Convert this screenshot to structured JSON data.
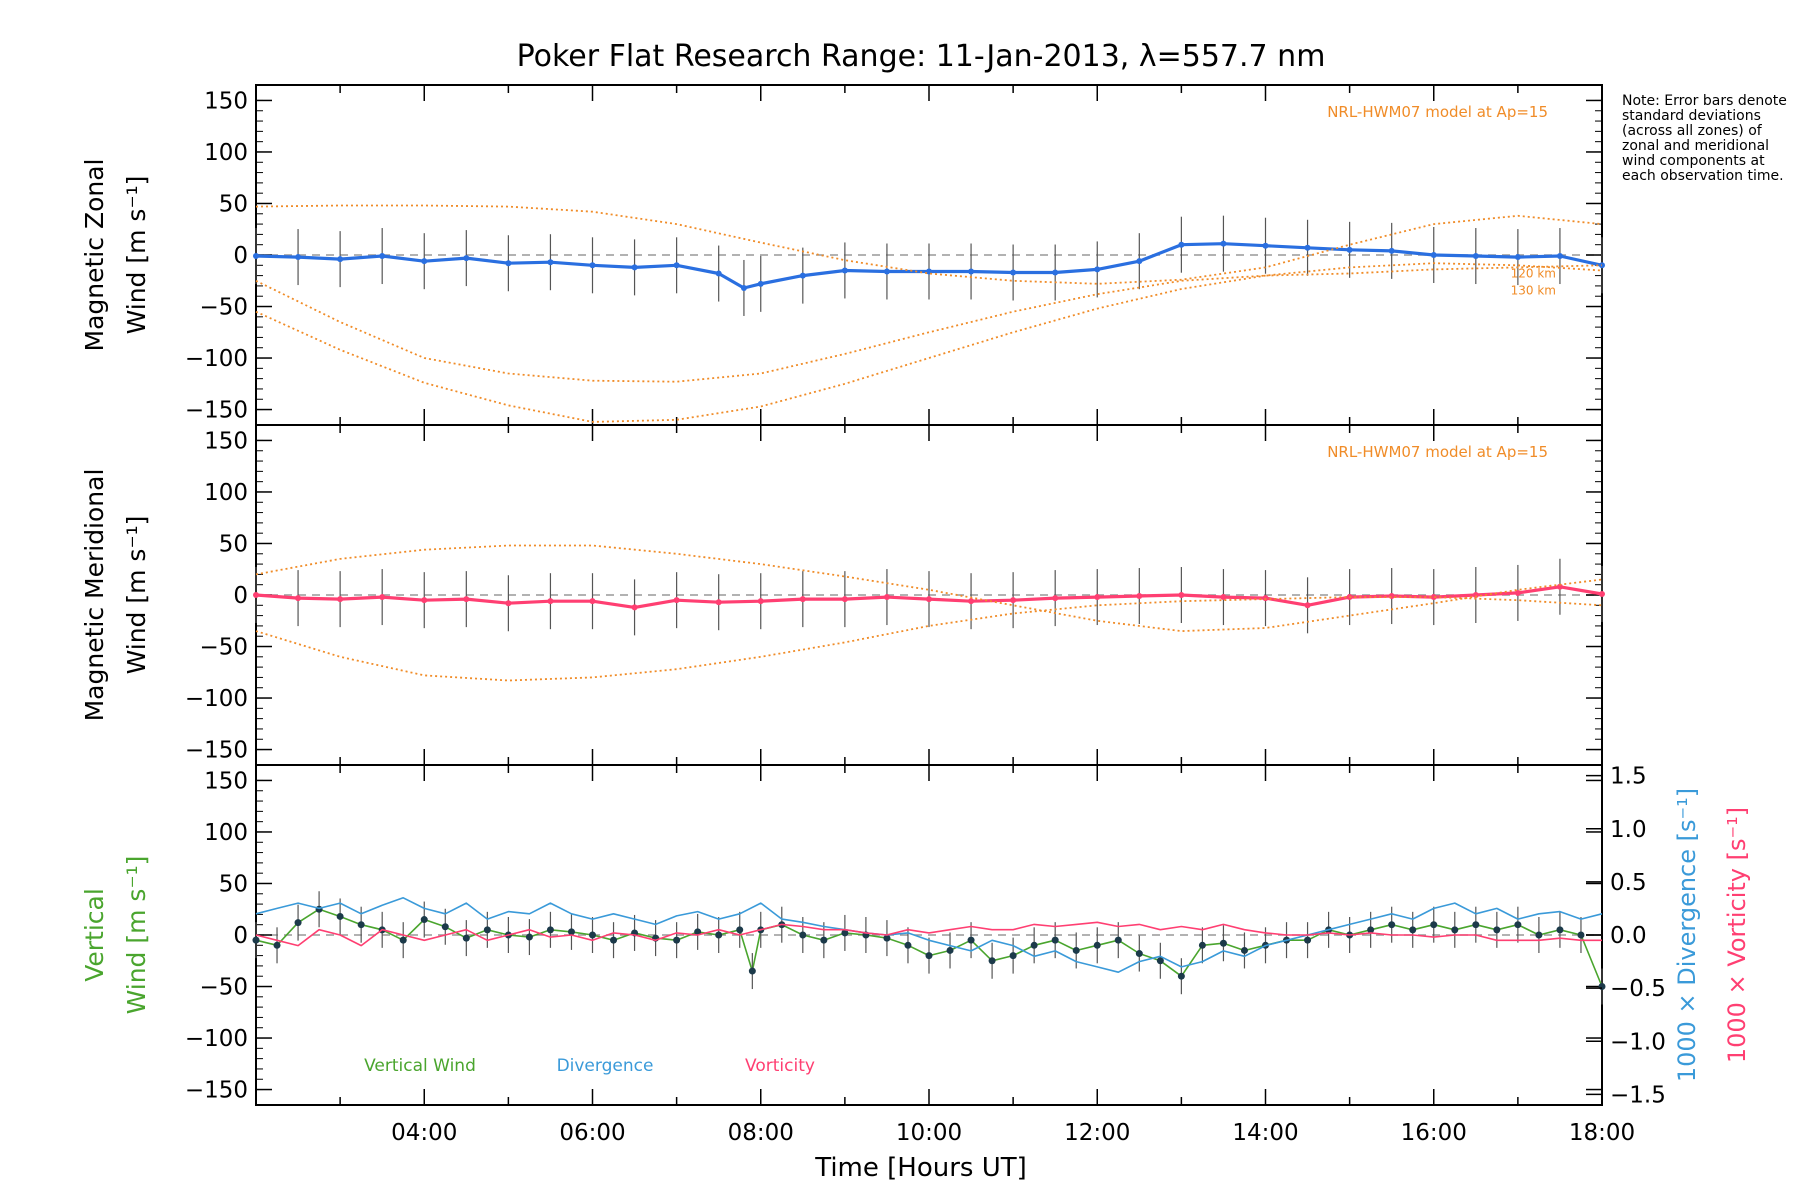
{
  "chart_data": {
    "type": "line",
    "title": "Poker Flat Research Range: 11-Jan-2013, λ=557.7 nm",
    "xlabel": "Time [Hours UT]",
    "xlim": [
      2.0,
      18.0
    ],
    "x_ticks": [
      {
        "value": 4,
        "label": "04:00"
      },
      {
        "value": 6,
        "label": "06:00"
      },
      {
        "value": 8,
        "label": "08:00"
      },
      {
        "value": 10,
        "label": "10:00"
      },
      {
        "value": 12,
        "label": "12:00"
      },
      {
        "value": 14,
        "label": "14:00"
      },
      {
        "value": 16,
        "label": "16:00"
      },
      {
        "value": 18,
        "label": "18:00"
      }
    ],
    "note": "Note: Error bars denote standard deviations (across all zones) of zonal and meridional wind components at each observation time.",
    "panels": [
      {
        "id": "zonal",
        "ylabel_line1": "Magnetic Zonal",
        "ylabel_line2": "Wind [m s⁻¹]",
        "ylim": [
          -165,
          165
        ],
        "y_ticks": [
          150,
          100,
          50,
          0,
          -50,
          -100,
          -150
        ],
        "model_label": "NRL-HWM07 model at Ap=15",
        "model_alt_labels": [
          "120 km",
          "130 km"
        ],
        "series": [
          {
            "name": "Mean zonal wind",
            "color": "#2a6fe0",
            "x": [
              2.0,
              2.5,
              3.0,
              3.5,
              4.0,
              4.5,
              5.0,
              5.5,
              6.0,
              6.5,
              7.0,
              7.5,
              7.8,
              8.0,
              8.5,
              9.0,
              9.5,
              10.0,
              10.5,
              11.0,
              11.5,
              12.0,
              12.5,
              13.0,
              13.5,
              14.0,
              14.5,
              15.0,
              15.5,
              16.0,
              16.5,
              17.0,
              17.5,
              18.0
            ],
            "y": [
              -1,
              -2,
              -4,
              -1,
              -6,
              -3,
              -8,
              -7,
              -10,
              -12,
              -10,
              -18,
              -32,
              -28,
              -20,
              -15,
              -16,
              -16,
              -16,
              -17,
              -17,
              -14,
              -6,
              10,
              11,
              9,
              7,
              5,
              4,
              0,
              -1,
              -2,
              -1,
              -10
            ]
          },
          {
            "name": "HWM07 model (120 km)",
            "color": "#f08c28",
            "x": [
              2.0,
              3.0,
              4.0,
              5.0,
              6.0,
              7.0,
              8.0,
              9.0,
              10.0,
              11.0,
              12.0,
              13.0,
              14.0,
              15.0,
              16.0,
              17.0,
              18.0
            ],
            "y": [
              -55,
              -92,
              -124,
              -146,
              -162,
              -160,
              -147,
              -125,
              -100,
              -75,
              -52,
              -33,
              -20,
              -12,
              -8,
              -10,
              -15
            ]
          },
          {
            "name": "HWM07 model (130 km)",
            "color": "#f08c28",
            "x": [
              2.0,
              3.0,
              4.0,
              5.0,
              6.0,
              7.0,
              8.0,
              9.0,
              10.0,
              11.0,
              12.0,
              13.0,
              14.0,
              15.0,
              16.0,
              17.0,
              18.0
            ],
            "y": [
              -25,
              -65,
              -100,
              -115,
              -122,
              -123,
              -115,
              -96,
              -75,
              -55,
              -38,
              -25,
              -20,
              -18,
              -14,
              -12,
              -10
            ]
          },
          {
            "name": "HWM07 model (upper)",
            "color": "#f08c28",
            "x": [
              2.0,
              3.0,
              4.0,
              5.0,
              6.0,
              7.0,
              8.0,
              9.0,
              10.0,
              11.0,
              12.0,
              13.0,
              14.0,
              15.0,
              16.0,
              17.0,
              18.0
            ],
            "y": [
              47,
              48,
              48,
              47,
              42,
              30,
              12,
              -5,
              -18,
              -25,
              -28,
              -24,
              -12,
              10,
              30,
              38,
              30
            ]
          }
        ]
      },
      {
        "id": "meridional",
        "ylabel_line1": "Magnetic Meridional",
        "ylabel_line2": "Wind [m s⁻¹]",
        "ylim": [
          -165,
          165
        ],
        "y_ticks": [
          150,
          100,
          50,
          0,
          -50,
          -100,
          -150
        ],
        "model_label": "NRL-HWM07 model at Ap=15",
        "series": [
          {
            "name": "Mean meridional wind",
            "color": "#ff3f72",
            "x": [
              2.0,
              2.5,
              3.0,
              3.5,
              4.0,
              4.5,
              5.0,
              5.5,
              6.0,
              6.5,
              7.0,
              7.5,
              8.0,
              8.5,
              9.0,
              9.5,
              10.0,
              10.5,
              11.0,
              11.5,
              12.0,
              12.5,
              13.0,
              13.5,
              14.0,
              14.5,
              15.0,
              15.5,
              16.0,
              16.5,
              17.0,
              17.5,
              18.0
            ],
            "y": [
              0,
              -3,
              -4,
              -2,
              -5,
              -4,
              -8,
              -6,
              -6,
              -12,
              -5,
              -7,
              -6,
              -4,
              -4,
              -2,
              -4,
              -6,
              -5,
              -3,
              -2,
              -1,
              0,
              -2,
              -3,
              -10,
              -2,
              -1,
              -2,
              0,
              2,
              8,
              1
            ]
          },
          {
            "name": "HWM07 model (lower)",
            "color": "#f08c28",
            "x": [
              2.0,
              3.0,
              4.0,
              5.0,
              6.0,
              7.0,
              8.0,
              9.0,
              10.0,
              11.0,
              12.0,
              13.0,
              14.0,
              15.0,
              16.0,
              17.0,
              18.0
            ],
            "y": [
              -35,
              -60,
              -78,
              -83,
              -80,
              -72,
              -60,
              -46,
              -30,
              -18,
              -10,
              -6,
              -4,
              -2,
              -2,
              -5,
              -10
            ]
          },
          {
            "name": "HWM07 model (upper)",
            "color": "#f08c28",
            "x": [
              2.0,
              3.0,
              4.0,
              5.0,
              6.0,
              7.0,
              8.0,
              9.0,
              10.0,
              11.0,
              12.0,
              13.0,
              14.0,
              15.0,
              16.0,
              17.0,
              18.0
            ],
            "y": [
              20,
              35,
              44,
              48,
              48,
              40,
              30,
              18,
              5,
              -10,
              -25,
              -35,
              -32,
              -20,
              -8,
              5,
              15
            ]
          }
        ]
      },
      {
        "id": "vertical",
        "ylabel_line1": "Vertical",
        "ylabel_line2": "Wind [m s⁻¹]",
        "ylim": [
          -165,
          165
        ],
        "y_ticks": [
          150,
          100,
          50,
          0,
          -50,
          -100,
          -150
        ],
        "y2label_line1": "1000 × Divergence [s⁻¹]",
        "y2label_line2": "1000 × Vorticity [s⁻¹]",
        "y2lim": [
          -1.6,
          1.6
        ],
        "y2_ticks": [
          1.5,
          1.0,
          0.5,
          0.0,
          -0.5,
          -1.0,
          -1.5
        ],
        "legend": [
          {
            "label": "Vertical Wind",
            "color": "#4aa52e"
          },
          {
            "label": "Divergence",
            "color": "#3a9ad9"
          },
          {
            "label": "Vorticity",
            "color": "#ff3f72"
          }
        ],
        "series": [
          {
            "name": "Vertical Wind",
            "color": "#4aa52e",
            "axis": "left",
            "x": [
              2.0,
              2.25,
              2.5,
              2.75,
              3.0,
              3.25,
              3.5,
              3.75,
              4.0,
              4.25,
              4.5,
              4.75,
              5.0,
              5.25,
              5.5,
              5.75,
              6.0,
              6.25,
              6.5,
              6.75,
              7.0,
              7.25,
              7.5,
              7.75,
              7.9,
              8.0,
              8.25,
              8.5,
              8.75,
              9.0,
              9.25,
              9.5,
              9.75,
              10.0,
              10.25,
              10.5,
              10.75,
              11.0,
              11.25,
              11.5,
              11.75,
              12.0,
              12.25,
              12.5,
              12.75,
              13.0,
              13.25,
              13.5,
              13.75,
              14.0,
              14.25,
              14.5,
              14.75,
              15.0,
              15.25,
              15.5,
              15.75,
              16.0,
              16.25,
              16.5,
              16.75,
              17.0,
              17.25,
              17.5,
              17.75,
              18.0
            ],
            "y": [
              -5,
              -10,
              12,
              25,
              18,
              10,
              5,
              -5,
              15,
              8,
              -3,
              5,
              0,
              -2,
              5,
              3,
              0,
              -5,
              2,
              -3,
              -5,
              3,
              0,
              5,
              -35,
              5,
              10,
              0,
              -5,
              2,
              0,
              -3,
              -10,
              -20,
              -15,
              -5,
              -25,
              -20,
              -10,
              -5,
              -15,
              -10,
              -5,
              -18,
              -25,
              -40,
              -10,
              -8,
              -15,
              -10,
              -5,
              -5,
              5,
              0,
              5,
              10,
              5,
              10,
              5,
              10,
              5,
              10,
              0,
              5,
              0,
              -50
            ]
          },
          {
            "name": "Divergence",
            "color": "#3a9ad9",
            "axis": "right",
            "x": [
              2.0,
              2.25,
              2.5,
              2.75,
              3.0,
              3.25,
              3.5,
              3.75,
              4.0,
              4.25,
              4.5,
              4.75,
              5.0,
              5.25,
              5.5,
              5.75,
              6.0,
              6.25,
              6.5,
              6.75,
              7.0,
              7.25,
              7.5,
              7.75,
              8.0,
              8.25,
              8.5,
              8.75,
              9.0,
              9.25,
              9.5,
              9.75,
              10.0,
              10.25,
              10.5,
              10.75,
              11.0,
              11.25,
              11.5,
              11.75,
              12.0,
              12.25,
              12.5,
              12.75,
              13.0,
              13.25,
              13.5,
              13.75,
              14.0,
              14.25,
              14.5,
              14.75,
              15.0,
              15.25,
              15.5,
              15.75,
              16.0,
              16.25,
              16.5,
              16.75,
              17.0,
              17.25,
              17.5,
              17.75,
              18.0
            ],
            "y": [
              0.2,
              0.25,
              0.3,
              0.25,
              0.3,
              0.2,
              0.28,
              0.35,
              0.25,
              0.2,
              0.3,
              0.15,
              0.22,
              0.2,
              0.3,
              0.2,
              0.15,
              0.2,
              0.15,
              0.1,
              0.18,
              0.22,
              0.15,
              0.2,
              0.3,
              0.15,
              0.12,
              0.08,
              0.05,
              0.02,
              0.0,
              0.02,
              -0.05,
              -0.1,
              -0.15,
              -0.05,
              -0.1,
              -0.2,
              -0.15,
              -0.25,
              -0.3,
              -0.35,
              -0.25,
              -0.2,
              -0.3,
              -0.25,
              -0.15,
              -0.2,
              -0.1,
              -0.05,
              0.0,
              0.05,
              0.1,
              0.15,
              0.2,
              0.15,
              0.25,
              0.3,
              0.2,
              0.25,
              0.15,
              0.2,
              0.22,
              0.15,
              0.2
            ]
          },
          {
            "name": "Vorticity",
            "color": "#ff3f72",
            "axis": "right",
            "x": [
              2.0,
              2.25,
              2.5,
              2.75,
              3.0,
              3.25,
              3.5,
              3.75,
              4.0,
              4.25,
              4.5,
              4.75,
              5.0,
              5.25,
              5.5,
              5.75,
              6.0,
              6.25,
              6.5,
              6.75,
              7.0,
              7.25,
              7.5,
              7.75,
              8.0,
              8.25,
              8.5,
              8.75,
              9.0,
              9.25,
              9.5,
              9.75,
              10.0,
              10.25,
              10.5,
              10.75,
              11.0,
              11.25,
              11.5,
              11.75,
              12.0,
              12.25,
              12.5,
              12.75,
              13.0,
              13.25,
              13.5,
              13.75,
              14.0,
              14.25,
              14.5,
              14.75,
              15.0,
              15.25,
              15.5,
              15.75,
              16.0,
              16.25,
              16.5,
              16.75,
              17.0,
              17.25,
              17.5,
              17.75,
              18.0
            ],
            "y": [
              0.0,
              -0.05,
              -0.1,
              0.05,
              0.0,
              -0.1,
              0.05,
              0.0,
              -0.05,
              0.0,
              0.05,
              -0.05,
              0.0,
              0.05,
              -0.02,
              0.0,
              -0.05,
              0.02,
              0.0,
              -0.05,
              0.02,
              0.0,
              0.05,
              0.0,
              0.05,
              0.1,
              0.08,
              0.05,
              0.05,
              0.02,
              0.0,
              0.05,
              0.02,
              0.05,
              0.08,
              0.05,
              0.05,
              0.1,
              0.08,
              0.1,
              0.12,
              0.08,
              0.1,
              0.05,
              0.08,
              0.05,
              0.1,
              0.05,
              0.02,
              0.0,
              0.0,
              0.02,
              0.0,
              0.02,
              0.0,
              0.0,
              -0.02,
              0.0,
              0.0,
              -0.05,
              -0.05,
              -0.05,
              -0.03,
              -0.05,
              -0.05
            ]
          }
        ]
      }
    ]
  }
}
